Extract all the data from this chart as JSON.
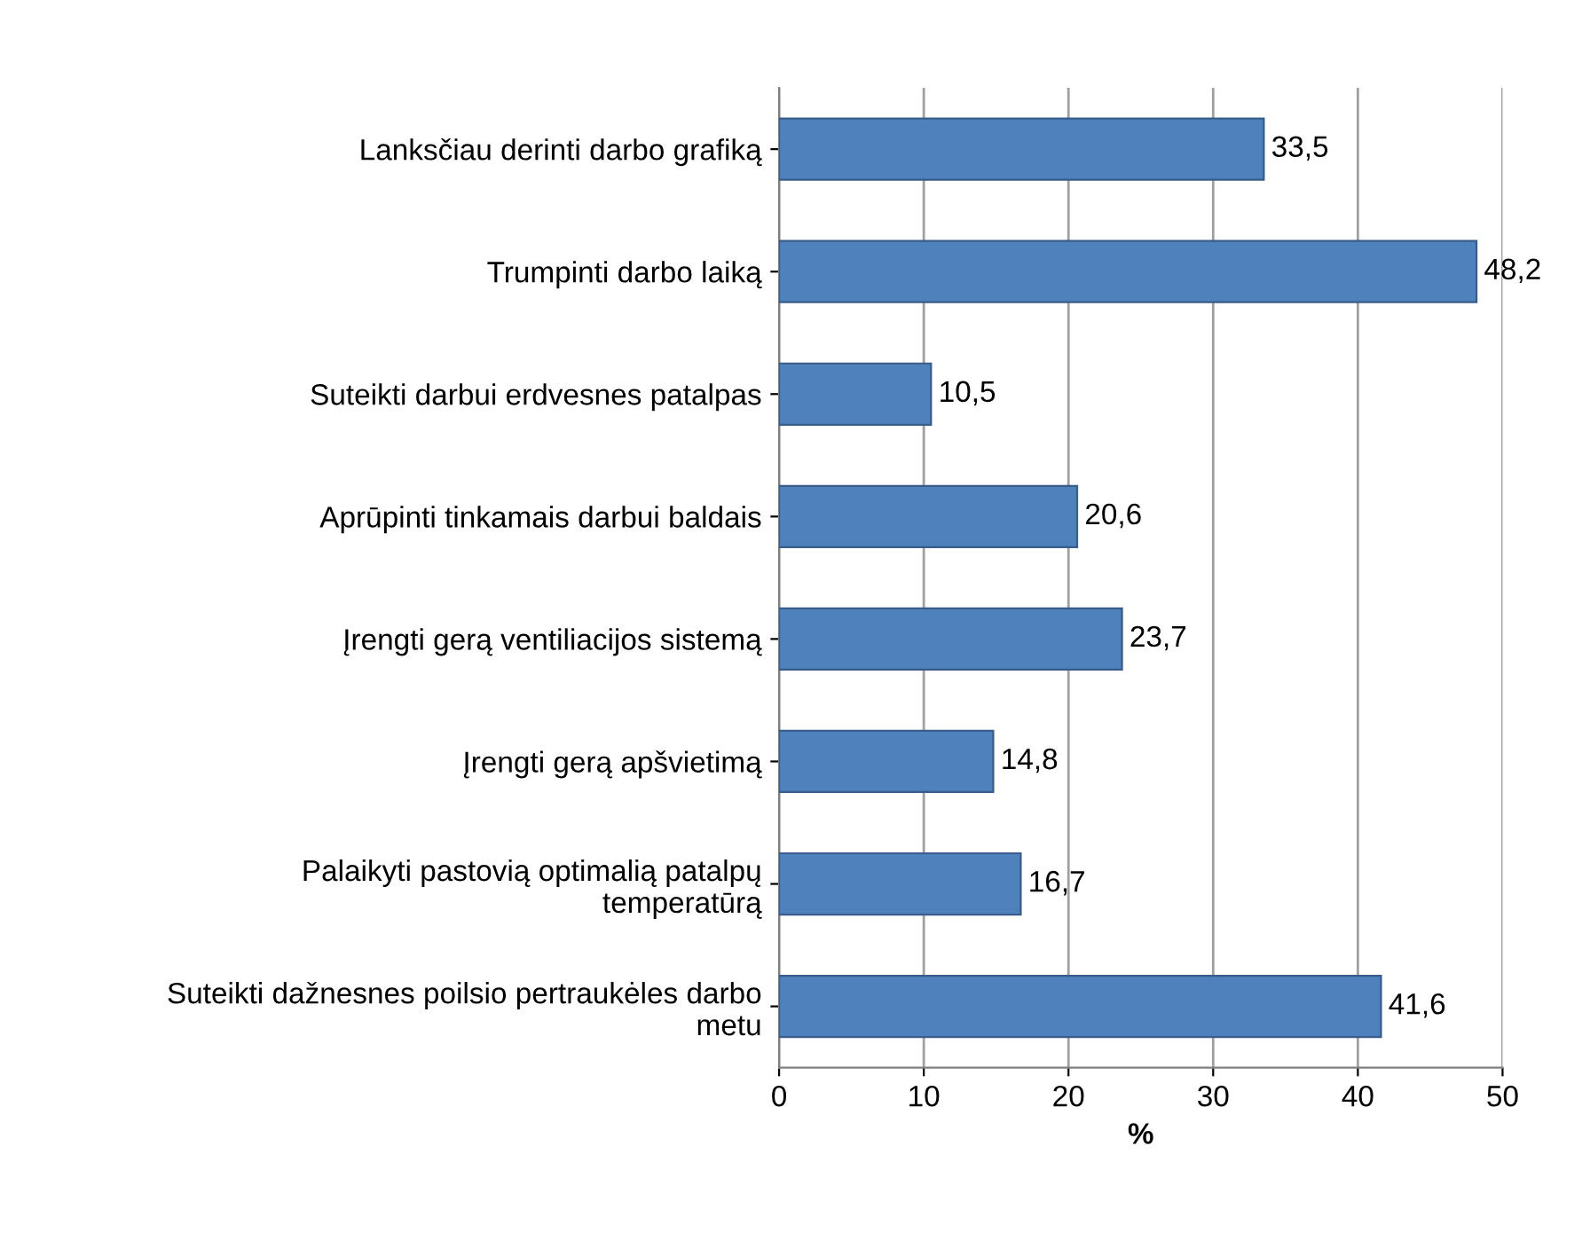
{
  "chart_data": {
    "type": "bar",
    "orientation": "horizontal",
    "xlabel": "%",
    "categories": [
      "Lanksčiau derinti darbo grafiką",
      "Trumpinti darbo laiką",
      "Suteikti darbui erdvesnes patalpas",
      "Aprūpinti tinkamais darbui baldais",
      "Įrengti gerą ventiliacijos sistemą",
      "Įrengti gerą apšvietimą",
      "Palaikyti pastovią optimalią patalpų\ntemperatūrą",
      "Suteikti dažnesnes poilsio pertraukėles darbo\nmetu"
    ],
    "values": [
      33.5,
      48.2,
      10.5,
      20.6,
      23.7,
      14.8,
      16.7,
      41.6
    ],
    "value_labels": [
      "33,5",
      "48,2",
      "10,5",
      "20,6",
      "23,7",
      "14,8",
      "16,7",
      "41,6"
    ],
    "color": "#4f81bd",
    "xlim": [
      0,
      50
    ],
    "xticks": [
      0,
      10,
      20,
      30,
      40,
      50
    ],
    "grid": "x"
  }
}
